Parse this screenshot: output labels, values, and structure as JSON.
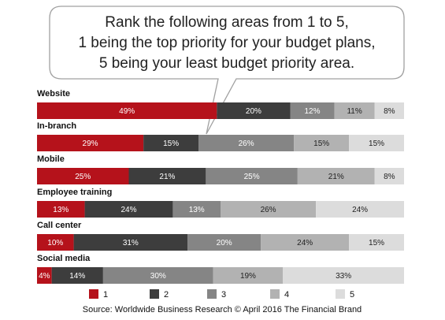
{
  "question": {
    "line1": "Rank the following areas from 1 to 5,",
    "line2": "1 being the top priority for your budget plans,",
    "line3": "5 being your least budget priority area."
  },
  "source": "Source: Worldwide Business Research © April 2016 The Financial Brand",
  "colors": {
    "rank1": "#b5121b",
    "rank2": "#3d3d3d",
    "rank3": "#858585",
    "rank4": "#b2b2b2",
    "rank5": "#dcdcdc"
  },
  "chart_data": {
    "type": "bar",
    "orientation": "horizontal-stacked-100",
    "categories": [
      "Website",
      "In-branch",
      "Mobile",
      "Employee training",
      "Call center",
      "Social media"
    ],
    "series": [
      {
        "name": "1",
        "values": [
          49,
          29,
          25,
          13,
          10,
          4
        ]
      },
      {
        "name": "2",
        "values": [
          20,
          15,
          21,
          24,
          31,
          14
        ]
      },
      {
        "name": "3",
        "values": [
          12,
          26,
          25,
          13,
          20,
          30
        ]
      },
      {
        "name": "4",
        "values": [
          11,
          15,
          21,
          26,
          24,
          19
        ]
      },
      {
        "name": "5",
        "values": [
          8,
          15,
          8,
          24,
          15,
          33
        ]
      }
    ],
    "value_suffix": "%",
    "xlim": [
      0,
      100
    ],
    "legend": "bottom",
    "grid": false
  }
}
